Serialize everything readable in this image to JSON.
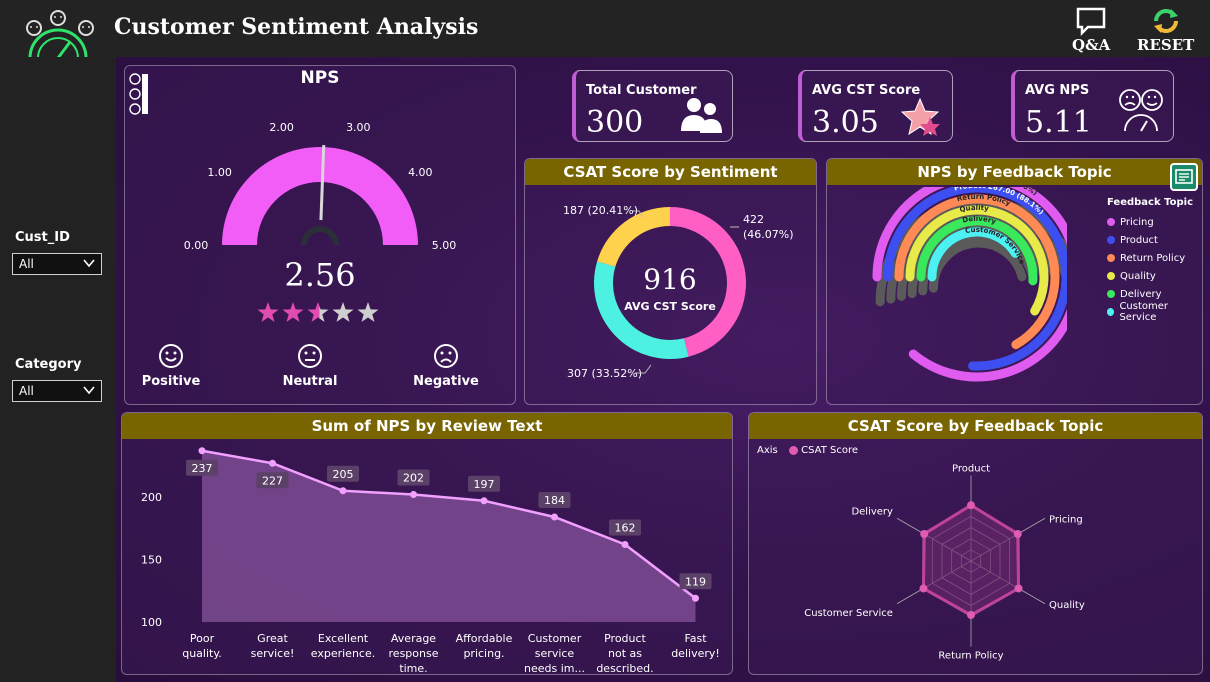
{
  "app_title": "Customer Sentiment Analysis",
  "top_buttons": {
    "qa": "Q&A",
    "reset": "RESET"
  },
  "filters": {
    "cust_id": {
      "label": "Cust_ID",
      "value": "All"
    },
    "category": {
      "label": "Category",
      "value": "All"
    }
  },
  "nps_gauge": {
    "title": "NPS",
    "value": 2.56,
    "value_label": "2.56",
    "min": 0,
    "max": 5,
    "ticks": [
      "0.00",
      "1.00",
      "2.00",
      "3.00",
      "4.00",
      "5.00"
    ],
    "stars_rating": 2.56,
    "sentiments": [
      "Positive",
      "Neutral",
      "Negative"
    ],
    "color": "#f25cf7"
  },
  "kpis": [
    {
      "label": "Total Customer",
      "value": "300",
      "icon": "people-icon"
    },
    {
      "label": "AVG CST Score",
      "value": "3.05",
      "icon": "star-icon"
    },
    {
      "label": "AVG NPS",
      "value": "5.11",
      "icon": "faces-gauge-icon"
    }
  ],
  "csat_donut": {
    "title": "CSAT Score by Sentiment",
    "center_value": "916",
    "center_label": "AVG CST Score",
    "chart_data": {
      "type": "pie",
      "values": [
        422,
        307,
        187
      ],
      "labels": [
        "422 (46.07%)",
        "307 (33.52%)",
        "187 (20.41%)"
      ],
      "colors": [
        "#ff5fc4",
        "#4cf1e1",
        "#ffd24d"
      ]
    }
  },
  "nps_topic": {
    "title": "NPS by Feedback Topic",
    "legend_title": "Feedback Topic",
    "chart_data": {
      "type": "bar",
      "categories": [
        "Pricing",
        "Product",
        "Return Policy",
        "Quality",
        "Delivery",
        "Customer Service"
      ],
      "values": [
        303,
        267,
        235,
        206,
        180,
        145
      ],
      "bar_labels": [
        "Pricing 303.00 (100%)",
        "Product 267.00 (88.1%)",
        "Return Policy",
        "Quality",
        "Delivery",
        "Customer Service"
      ],
      "colors": [
        "#e05cf0",
        "#3d4ff0",
        "#ff8a55",
        "#e8ea4a",
        "#3ae85c",
        "#4cf1f1"
      ]
    }
  },
  "sum_nps": {
    "title": "Sum of NPS by Review Text",
    "chart_data": {
      "type": "area",
      "categories": [
        "Poor quality.",
        "Great service!",
        "Excellent experience.",
        "Average response time.",
        "Affordable pricing.",
        "Customer service needs im...",
        "Product not as described.",
        "Fast delivery!"
      ],
      "category_lines": [
        [
          "Poor",
          "quality."
        ],
        [
          "Great",
          "service!"
        ],
        [
          "Excellent",
          "experience."
        ],
        [
          "Average",
          "response",
          "time."
        ],
        [
          "Affordable",
          "pricing."
        ],
        [
          "Customer",
          "service",
          "needs im..."
        ],
        [
          "Product",
          "not as",
          "described."
        ],
        [
          "Fast",
          "delivery!"
        ]
      ],
      "values": [
        237,
        227,
        205,
        202,
        197,
        184,
        162,
        119
      ],
      "yticks": [
        100,
        150,
        200
      ],
      "ylim": [
        100,
        240
      ],
      "color": "#f2a0ff"
    }
  },
  "csat_topic": {
    "title": "CSAT Score by Feedback Topic",
    "legend_axis": "Axis",
    "legend_series": "CSAT Score",
    "chart_data": {
      "type": "radar",
      "categories": [
        "Product",
        "Pricing",
        "Quality",
        "Return Policy",
        "Customer Service",
        "Delivery"
      ],
      "values": [
        3.1,
        3.0,
        3.05,
        3.0,
        3.05,
        3.0
      ],
      "rmax": 5,
      "color": "#c0439a"
    }
  }
}
